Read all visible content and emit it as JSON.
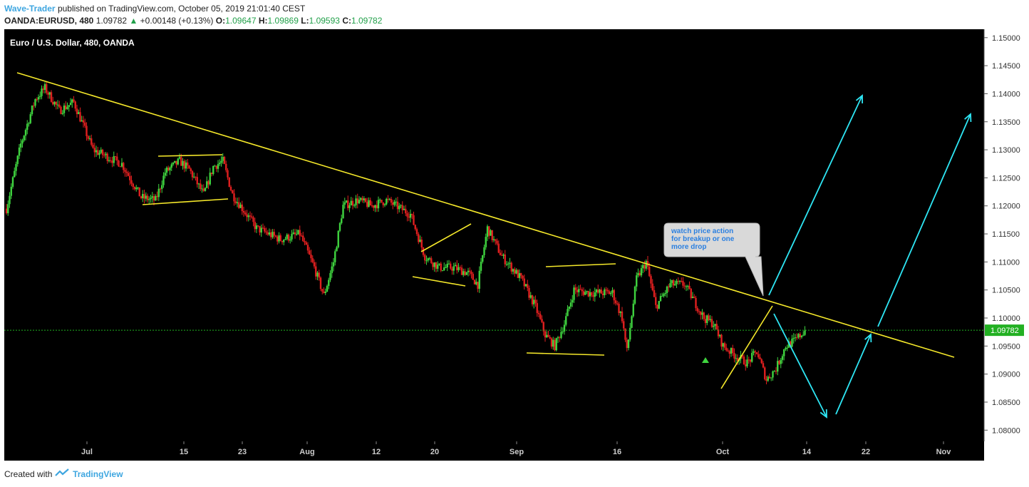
{
  "header": {
    "author": "Wave-Trader",
    "published": "published on TradingView.com, October 05, 2019 21:01:40 CEST",
    "symbol": "OANDA:EURUSD, 480",
    "last": "1.09782",
    "change": "+0.00148 (+0.13%)",
    "open_label": "O:",
    "open": "1.09647",
    "high_label": "H:",
    "high": "1.09869",
    "low_label": "L:",
    "low": "1.09593",
    "close_label": "C:",
    "close": "1.09782"
  },
  "footer": {
    "created": "Created with",
    "brand": "TradingView"
  },
  "chart_data": {
    "type": "candlestick",
    "title": "Euro / U.S. Dollar, 480, OANDA",
    "ylim": [
      1.078,
      1.1515
    ],
    "y_ticks": [
      "1.08000",
      "1.08500",
      "1.09000",
      "1.09500",
      "1.10000",
      "1.10500",
      "1.11000",
      "1.11500",
      "1.12000",
      "1.12500",
      "1.13000",
      "1.13500",
      "1.14000",
      "1.14500",
      "1.15000"
    ],
    "x_ticks": [
      "Jul",
      "15",
      "23",
      "Aug",
      "12",
      "20",
      "Sep",
      "16",
      "Oct",
      "14",
      "22",
      "Nov"
    ],
    "last_price": 1.09782,
    "last_price_label": "1.09782",
    "price_path": [
      {
        "d": 0,
        "p": 1.1195
      },
      {
        "d": 3,
        "p": 1.131
      },
      {
        "d": 6,
        "p": 1.139
      },
      {
        "d": 8,
        "p": 1.141
      },
      {
        "d": 11,
        "p": 1.137
      },
      {
        "d": 14,
        "p": 1.1385
      },
      {
        "d": 18,
        "p": 1.13
      },
      {
        "d": 24,
        "p": 1.1275
      },
      {
        "d": 28,
        "p": 1.1215
      },
      {
        "d": 31,
        "p": 1.121
      },
      {
        "d": 33,
        "p": 1.126
      },
      {
        "d": 36,
        "p": 1.128
      },
      {
        "d": 38,
        "p": 1.1265
      },
      {
        "d": 41,
        "p": 1.122
      },
      {
        "d": 43,
        "p": 1.127
      },
      {
        "d": 45,
        "p": 1.128
      },
      {
        "d": 47,
        "p": 1.122
      },
      {
        "d": 52,
        "p": 1.116
      },
      {
        "d": 57,
        "p": 1.114
      },
      {
        "d": 61,
        "p": 1.115
      },
      {
        "d": 64,
        "p": 1.109
      },
      {
        "d": 66,
        "p": 1.104
      },
      {
        "d": 68,
        "p": 1.11
      },
      {
        "d": 70,
        "p": 1.12
      },
      {
        "d": 73,
        "p": 1.121
      },
      {
        "d": 76,
        "p": 1.12
      },
      {
        "d": 79,
        "p": 1.121
      },
      {
        "d": 81,
        "p": 1.12
      },
      {
        "d": 84,
        "p": 1.1185
      },
      {
        "d": 87,
        "p": 1.111
      },
      {
        "d": 90,
        "p": 1.109
      },
      {
        "d": 93,
        "p": 1.109
      },
      {
        "d": 96,
        "p": 1.108
      },
      {
        "d": 98,
        "p": 1.106
      },
      {
        "d": 100,
        "p": 1.116
      },
      {
        "d": 103,
        "p": 1.111
      },
      {
        "d": 107,
        "p": 1.107
      },
      {
        "d": 110,
        "p": 1.102
      },
      {
        "d": 112,
        "p": 1.097
      },
      {
        "d": 114,
        "p": 1.095
      },
      {
        "d": 116,
        "p": 1.099
      },
      {
        "d": 118,
        "p": 1.105
      },
      {
        "d": 121,
        "p": 1.1045
      },
      {
        "d": 124,
        "p": 1.1045
      },
      {
        "d": 126,
        "p": 1.1045
      },
      {
        "d": 128,
        "p": 1.1
      },
      {
        "d": 129,
        "p": 1.094
      },
      {
        "d": 131,
        "p": 1.107
      },
      {
        "d": 133,
        "p": 1.11
      },
      {
        "d": 135,
        "p": 1.102
      },
      {
        "d": 138,
        "p": 1.106
      },
      {
        "d": 141,
        "p": 1.106
      },
      {
        "d": 143,
        "p": 1.103
      },
      {
        "d": 145,
        "p": 1.1
      },
      {
        "d": 147,
        "p": 1.099
      },
      {
        "d": 149,
        "p": 1.095
      },
      {
        "d": 152,
        "p": 1.093
      },
      {
        "d": 154,
        "p": 1.092
      },
      {
        "d": 156,
        "p": 1.094
      },
      {
        "d": 158,
        "p": 1.089
      },
      {
        "d": 160,
        "p": 1.091
      },
      {
        "d": 162,
        "p": 1.095
      },
      {
        "d": 164,
        "p": 1.096
      },
      {
        "d": 166,
        "p": 1.0978
      }
    ],
    "annotation": "watch price action for breakup or one more drop"
  }
}
